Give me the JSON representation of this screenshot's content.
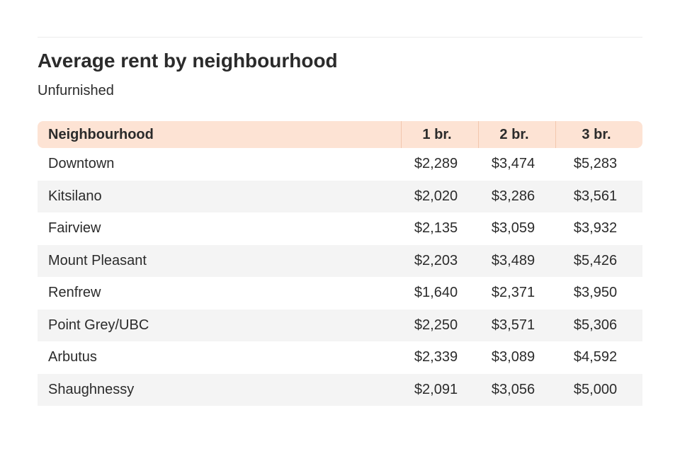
{
  "chart_data": {
    "type": "table",
    "title": "Average rent by neighbourhood",
    "subtitle": "Unfurnished",
    "columns": [
      "Neighbourhood",
      "1 br.",
      "2 br.",
      "3 br."
    ],
    "rows": [
      {
        "name": "Downtown",
        "values": [
          "$2,289",
          "$3,474",
          "$5,283"
        ]
      },
      {
        "name": "Kitsilano",
        "values": [
          "$2,020",
          "$3,286",
          "$3,561"
        ]
      },
      {
        "name": "Fairview",
        "values": [
          "$2,135",
          "$3,059",
          "$3,932"
        ]
      },
      {
        "name": "Mount Pleasant",
        "values": [
          "$2,203",
          "$3,489",
          "$5,426"
        ]
      },
      {
        "name": "Renfrew",
        "values": [
          "$1,640",
          "$2,371",
          "$3,950"
        ]
      },
      {
        "name": "Point Grey/UBC",
        "values": [
          "$2,250",
          "$3,571",
          "$5,306"
        ]
      },
      {
        "name": "Arbutus",
        "values": [
          "$2,339",
          "$3,089",
          "$4,592"
        ]
      },
      {
        "name": "Shaughnessy",
        "values": [
          "$2,091",
          "$3,056",
          "$5,000"
        ]
      }
    ]
  },
  "colors": {
    "header_background": "#fde3d4",
    "alt_row_background": "#f4f4f4",
    "text": "#2b2b2b"
  }
}
